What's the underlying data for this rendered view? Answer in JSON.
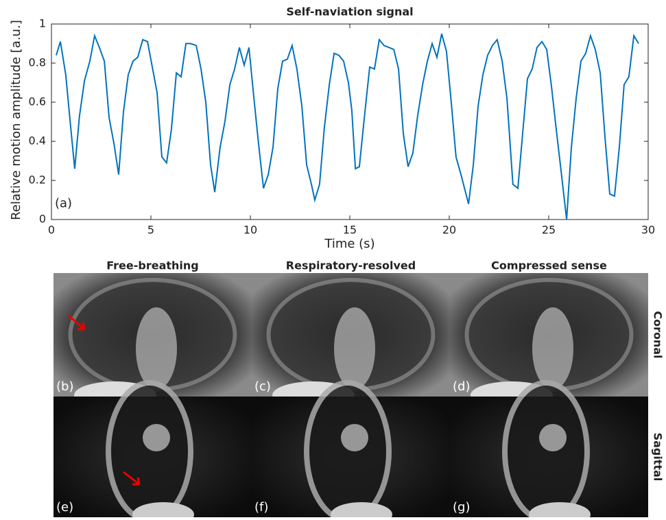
{
  "chart_data": {
    "type": "line",
    "title": "Self-naviation signal",
    "x_label": "Time (s)",
    "y_label": "Relative motion amplitude [a.u.]",
    "annotation": "(a)",
    "color": "#0072bd",
    "x": [
      0.24,
      0.45,
      0.72,
      0.97,
      1.17,
      1.41,
      1.66,
      1.93,
      2.17,
      2.41,
      2.66,
      2.9,
      3.14,
      3.38,
      3.62,
      3.86,
      4.1,
      4.34,
      4.59,
      4.83,
      5.07,
      5.31,
      5.55,
      5.79,
      6.03,
      6.28,
      6.52,
      6.76,
      7.0,
      7.28,
      7.52,
      7.76,
      8.0,
      8.21,
      8.48,
      8.72,
      8.97,
      9.21,
      9.45,
      9.69,
      9.93,
      10.17,
      10.41,
      10.66,
      10.9,
      11.14,
      11.38,
      11.62,
      11.86,
      12.1,
      12.34,
      12.59,
      12.83,
      13.07,
      13.24,
      13.48,
      13.72,
      13.97,
      14.21,
      14.45,
      14.69,
      14.93,
      15.1,
      15.28,
      15.48,
      15.76,
      16.0,
      16.24,
      16.48,
      16.72,
      16.97,
      17.21,
      17.45,
      17.69,
      17.93,
      18.17,
      18.41,
      18.66,
      18.9,
      19.14,
      19.38,
      19.62,
      19.86,
      20.1,
      20.34,
      20.59,
      20.97,
      21.21,
      21.45,
      21.69,
      21.93,
      22.17,
      22.41,
      22.66,
      22.9,
      23.2,
      23.45,
      23.69,
      23.93,
      24.17,
      24.41,
      24.66,
      24.9,
      25.14,
      25.38,
      25.62,
      25.9,
      26.14,
      26.38,
      26.62,
      26.86,
      27.1,
      27.34,
      27.59,
      27.83,
      28.07,
      28.31,
      28.55,
      28.79,
      29.03,
      29.28,
      29.52
    ],
    "values": [
      0.84,
      0.91,
      0.74,
      0.47,
      0.26,
      0.53,
      0.71,
      0.81,
      0.94,
      0.88,
      0.81,
      0.52,
      0.39,
      0.23,
      0.55,
      0.74,
      0.81,
      0.83,
      0.92,
      0.91,
      0.78,
      0.65,
      0.32,
      0.29,
      0.46,
      0.75,
      0.73,
      0.9,
      0.9,
      0.89,
      0.77,
      0.6,
      0.28,
      0.14,
      0.37,
      0.5,
      0.69,
      0.77,
      0.88,
      0.79,
      0.88,
      0.63,
      0.39,
      0.16,
      0.23,
      0.37,
      0.67,
      0.81,
      0.82,
      0.89,
      0.77,
      0.58,
      0.28,
      0.18,
      0.1,
      0.18,
      0.47,
      0.69,
      0.85,
      0.84,
      0.81,
      0.7,
      0.56,
      0.26,
      0.27,
      0.55,
      0.78,
      0.77,
      0.92,
      0.89,
      0.88,
      0.87,
      0.77,
      0.44,
      0.27,
      0.34,
      0.53,
      0.69,
      0.81,
      0.9,
      0.83,
      0.95,
      0.86,
      0.6,
      0.32,
      0.23,
      0.08,
      0.28,
      0.58,
      0.74,
      0.84,
      0.89,
      0.92,
      0.81,
      0.62,
      0.18,
      0.16,
      0.44,
      0.72,
      0.77,
      0.88,
      0.91,
      0.87,
      0.68,
      0.46,
      0.25,
      0.0,
      0.37,
      0.62,
      0.81,
      0.85,
      0.94,
      0.87,
      0.75,
      0.42,
      0.13,
      0.12,
      0.37,
      0.69,
      0.73,
      0.94,
      0.9
    ],
    "xlim": [
      0,
      30
    ],
    "xticks": [
      0,
      5,
      10,
      15,
      20,
      25,
      30
    ],
    "ylim": [
      0,
      1
    ],
    "yticks": [
      0,
      0.2,
      0.4,
      0.6,
      0.8,
      1
    ]
  },
  "figure": {
    "column_titles": [
      "Free-breathing",
      "Respiratory-resolved",
      "Compressed sense"
    ],
    "row_labels": [
      "Coronal",
      "Sagittal"
    ],
    "panel_labels": [
      [
        "(b)",
        "(c)",
        "(d)"
      ],
      [
        "(e)",
        "(f)",
        "(g)"
      ]
    ]
  }
}
